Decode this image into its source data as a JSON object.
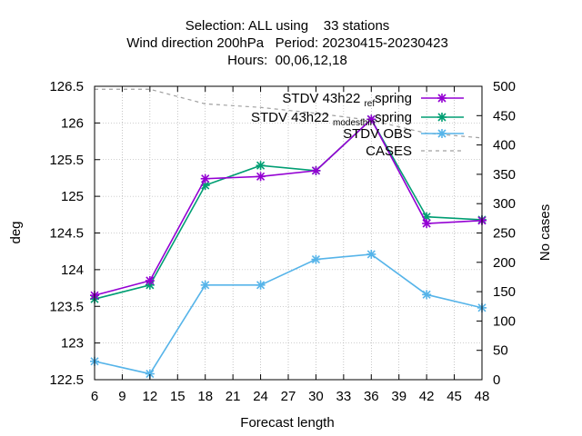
{
  "chart_data": {
    "type": "line",
    "title_lines": [
      "Selection: ALL using    33 stations",
      "Wind direction 200hPa   Period: 20230415-20230423",
      "Hours:  00,06,12,18"
    ],
    "xlabel": "Forecast length",
    "ylabel": "deg",
    "y2label": "No cases",
    "xlim": [
      6,
      48
    ],
    "xticks": [
      6,
      9,
      12,
      15,
      18,
      21,
      24,
      27,
      30,
      33,
      36,
      39,
      42,
      45,
      48
    ],
    "ylim": [
      122.5,
      126.5
    ],
    "yticks": [
      "122.5",
      "123",
      "123.5",
      "124",
      "124.5",
      "125",
      "125.5",
      "126",
      "126.5"
    ],
    "y2lim": [
      0,
      500
    ],
    "y2ticks": [
      0,
      50,
      100,
      150,
      200,
      250,
      300,
      350,
      400,
      450,
      500
    ],
    "grid": true,
    "legend_position": "top-right",
    "x": [
      6,
      12,
      18,
      24,
      30,
      36,
      42,
      48
    ],
    "series": [
      {
        "name": "STDV 43h22_ref_spring",
        "legend_main": "STDV 43h22",
        "legend_sub": "ref",
        "legend_end": "spring",
        "color": "#9400d3",
        "marker": "x",
        "axis": "y",
        "values": [
          123.65,
          123.85,
          125.24,
          125.27,
          125.35,
          126.05,
          124.63,
          124.67
        ]
      },
      {
        "name": "STDV 43h22_modesthin_spring",
        "legend_main": "STDV 43h22",
        "legend_sub": "modesthin",
        "legend_end": "spring",
        "color": "#009e73",
        "marker": "x",
        "axis": "y",
        "values": [
          123.6,
          123.79,
          125.15,
          125.42,
          125.35,
          126.05,
          124.72,
          124.68
        ]
      },
      {
        "name": "STDV OBS",
        "legend_main": "STDV OBS",
        "color": "#56b4e9",
        "marker": "x",
        "axis": "y",
        "values": [
          122.75,
          122.58,
          123.79,
          123.79,
          124.14,
          124.21,
          123.66,
          123.48
        ]
      },
      {
        "name": "CASES",
        "legend_main": "CASES",
        "color": "#a0a0a0",
        "dashed": true,
        "axis": "y2",
        "values": [
          495,
          495,
          470,
          464,
          454,
          442,
          420,
          412
        ]
      }
    ]
  }
}
